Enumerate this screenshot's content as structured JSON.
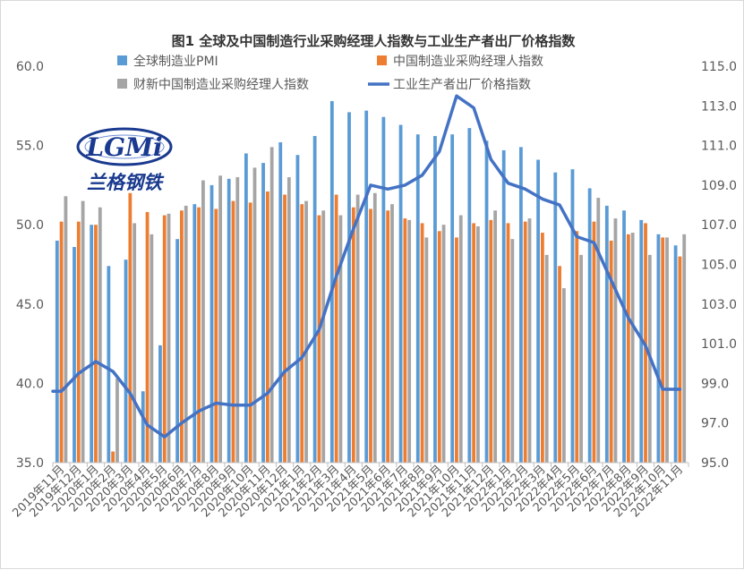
{
  "chart_data": {
    "type": "bar",
    "title": "图1 全球及中国制造行业采购经理人指数与工业生产者出厂价格指数",
    "categories": [
      "2019年11月",
      "2019年12月",
      "2020年1月",
      "2020年2月",
      "2020年3月",
      "2020年4月",
      "2020年5月",
      "2020年6月",
      "2020年7月",
      "2020年8月",
      "2020年9月",
      "2020年10月",
      "2020年11月",
      "2020年12月",
      "2021年1月",
      "2021年2月",
      "2021年3月",
      "2021年4月",
      "2021年5月",
      "2021年6月",
      "2021年7月",
      "2021年8月",
      "2021年9月",
      "2021年10月",
      "2021年11月",
      "2021年12月",
      "2022年1月",
      "2022年2月",
      "2022年3月",
      "2022年4月",
      "2022年5月",
      "2022年6月",
      "2022年7月",
      "2022年8月",
      "2022年9月",
      "2022年10月",
      "2022年11月"
    ],
    "series": [
      {
        "name": "全球制造业PMI",
        "color": "#5b9bd5",
        "axis": "left",
        "values": [
          49.0,
          48.6,
          50.0,
          47.4,
          47.8,
          39.5,
          42.4,
          49.1,
          51.3,
          52.5,
          52.9,
          54.5,
          53.9,
          55.2,
          54.4,
          55.6,
          57.8,
          57.1,
          57.2,
          56.8,
          56.3,
          55.7,
          55.6,
          55.7,
          56.1,
          55.3,
          54.7,
          54.9,
          54.1,
          53.3,
          53.5,
          52.3,
          51.2,
          50.9,
          50.3,
          49.4,
          48.7
        ]
      },
      {
        "name": "中国制造业采购经理人指数",
        "color": "#ed7d31",
        "axis": "left",
        "values": [
          50.2,
          50.2,
          50.0,
          35.7,
          52.0,
          50.8,
          50.6,
          50.9,
          51.1,
          51.0,
          51.5,
          51.4,
          52.1,
          51.9,
          51.3,
          50.6,
          51.9,
          51.1,
          51.0,
          50.9,
          50.4,
          50.1,
          49.6,
          49.2,
          50.1,
          50.3,
          50.1,
          50.2,
          49.5,
          47.4,
          49.6,
          50.2,
          49.0,
          49.4,
          50.1,
          49.2,
          48.0
        ]
      },
      {
        "name": "财新中国制造业采购经理人指数",
        "color": "#a5a5a5",
        "axis": "left",
        "values": [
          51.8,
          51.5,
          51.1,
          40.3,
          50.1,
          49.4,
          50.7,
          51.2,
          52.8,
          53.1,
          53.0,
          53.6,
          54.9,
          53.0,
          51.5,
          50.9,
          50.6,
          51.9,
          52.0,
          51.3,
          50.3,
          49.2,
          50.0,
          50.6,
          49.9,
          50.9,
          49.1,
          50.4,
          48.1,
          46.0,
          48.1,
          51.7,
          50.4,
          49.5,
          48.1,
          49.2,
          49.4
        ]
      },
      {
        "name": "工业生产者出厂价格指数",
        "color": "#4472c4",
        "axis": "right",
        "type": "line",
        "values": [
          98.6,
          99.5,
          100.1,
          99.6,
          98.5,
          96.9,
          96.3,
          97.0,
          97.6,
          98.0,
          97.9,
          97.9,
          98.5,
          99.6,
          100.3,
          101.7,
          104.4,
          106.8,
          109.0,
          108.8,
          109.0,
          109.5,
          110.7,
          113.5,
          112.9,
          110.3,
          109.1,
          108.8,
          108.3,
          108.0,
          106.4,
          106.1,
          104.2,
          102.3,
          100.9,
          98.7,
          98.7
        ]
      }
    ],
    "y_left": {
      "ylim": [
        35.0,
        60.0
      ],
      "ticks": [
        "35.0",
        "40.0",
        "45.0",
        "50.0",
        "55.0",
        "60.0"
      ]
    },
    "y_right": {
      "ylim": [
        95.0,
        115.0
      ],
      "ticks": [
        "95.0",
        "97.0",
        "99.0",
        "101.0",
        "103.0",
        "105.0",
        "107.0",
        "109.0",
        "111.0",
        "113.0",
        "115.0"
      ]
    },
    "xlabel": "",
    "ylabel": "",
    "legend_position": "top",
    "grid": false
  },
  "logo": {
    "text": "LGMi",
    "subtitle": "兰格钢铁",
    "color": "#1a3a8f"
  }
}
